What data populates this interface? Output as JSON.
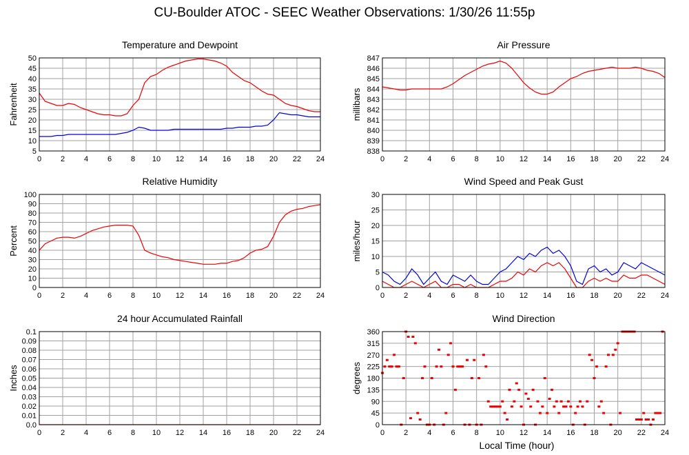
{
  "page": {
    "title": "CU-Boulder ATOC - SEEC Weather Observations: 1/30/26 11:55p",
    "x_axis_label": "Local Time (hour)"
  },
  "colors": {
    "red": "#ee0000",
    "blue": "#0000dd",
    "grid": "#a0a0a0",
    "frame": "#000000"
  },
  "chart_data": [
    {
      "id": "temp",
      "type": "line",
      "title": "Temperature and Dewpoint",
      "ylabel": "Fahrenheit",
      "xlim": [
        0,
        24
      ],
      "ylim": [
        5,
        50
      ],
      "yticks": [
        "5",
        "10",
        "15",
        "20",
        "25",
        "30",
        "35",
        "40",
        "45",
        "50"
      ],
      "xticks": [
        "0",
        "2",
        "4",
        "6",
        "8",
        "10",
        "12",
        "14",
        "16",
        "18",
        "20",
        "22",
        "24"
      ],
      "series": [
        {
          "color": "red",
          "x": [
            0,
            0.5,
            1,
            1.5,
            2,
            2.5,
            3,
            3.5,
            4,
            4.5,
            5,
            5.5,
            6,
            6.5,
            7,
            7.5,
            8,
            8.5,
            9,
            9.5,
            10,
            10.5,
            11,
            11.5,
            12,
            12.5,
            13,
            13.5,
            14,
            14.5,
            15,
            15.5,
            16,
            16.5,
            17,
            17.5,
            18,
            18.5,
            19,
            19.5,
            20,
            20.5,
            21,
            21.5,
            22,
            22.5,
            23,
            23.5,
            24
          ],
          "y": [
            33,
            29,
            28,
            27,
            27,
            28,
            27.5,
            26,
            25,
            24,
            23,
            22.5,
            22.5,
            22,
            22,
            23,
            27,
            30,
            38,
            41,
            42,
            44,
            45.5,
            46.5,
            47.5,
            48.5,
            49,
            49.5,
            49.5,
            49,
            48.5,
            47.5,
            46,
            43,
            41,
            39,
            38,
            36,
            34,
            32.5,
            32,
            30,
            28,
            27,
            26.5,
            25.5,
            24.5,
            24,
            24
          ]
        },
        {
          "color": "blue",
          "x": [
            0,
            0.5,
            1,
            1.5,
            2,
            2.5,
            3,
            3.5,
            4,
            4.5,
            5,
            5.5,
            6,
            6.5,
            7,
            7.5,
            8,
            8.5,
            9,
            9.5,
            10,
            10.5,
            11,
            11.5,
            12,
            12.5,
            13,
            13.5,
            14,
            14.5,
            15,
            15.5,
            16,
            16.5,
            17,
            17.5,
            18,
            18.5,
            19,
            19.5,
            20,
            20.5,
            21,
            21.5,
            22,
            22.5,
            23,
            23.5,
            24
          ],
          "y": [
            12,
            12,
            12,
            12.5,
            12.5,
            13,
            13,
            13,
            13,
            13,
            13,
            13,
            13,
            13,
            13.5,
            14,
            15,
            16.5,
            16,
            15,
            15,
            15,
            15,
            15.5,
            15.5,
            15.5,
            15.5,
            15.5,
            15.5,
            15.5,
            15.5,
            15.5,
            16,
            16,
            16.5,
            16.5,
            16.5,
            17,
            17,
            17.5,
            20,
            23.5,
            23,
            22.5,
            22.5,
            22,
            21.5,
            21.5,
            21.5
          ]
        }
      ]
    },
    {
      "id": "press",
      "type": "line",
      "title": "Air Pressure",
      "ylabel": "millibars",
      "xlim": [
        0,
        24
      ],
      "ylim": [
        838,
        847
      ],
      "yticks": [
        "838",
        "839",
        "840",
        "841",
        "842",
        "843",
        "844",
        "845",
        "846",
        "847"
      ],
      "xticks": [
        "0",
        "2",
        "4",
        "6",
        "8",
        "10",
        "12",
        "14",
        "16",
        "18",
        "20",
        "22",
        "24"
      ],
      "series": [
        {
          "color": "red",
          "x": [
            0,
            0.5,
            1,
            1.5,
            2,
            2.5,
            3,
            3.5,
            4,
            4.5,
            5,
            5.5,
            6,
            6.5,
            7,
            7.5,
            8,
            8.5,
            9,
            9.5,
            10,
            10.5,
            11,
            11.5,
            12,
            12.5,
            13,
            13.5,
            14,
            14.5,
            15,
            15.5,
            16,
            16.5,
            17,
            17.5,
            18,
            18.5,
            19,
            19.5,
            20,
            20.5,
            21,
            21.5,
            22,
            22.5,
            23,
            23.5,
            24
          ],
          "y": [
            844.2,
            844.1,
            844,
            843.9,
            843.9,
            844,
            844,
            844,
            844,
            844,
            844,
            844.2,
            844.5,
            844.9,
            845.3,
            845.6,
            845.9,
            846.2,
            846.4,
            846.5,
            846.7,
            846.5,
            846,
            845.3,
            844.6,
            844.1,
            843.7,
            843.5,
            843.5,
            843.7,
            844.2,
            844.6,
            845,
            845.2,
            845.5,
            845.7,
            845.8,
            845.9,
            846,
            846.1,
            846,
            846,
            846,
            846.1,
            846,
            845.8,
            845.7,
            845.5,
            845.1
          ]
        }
      ]
    },
    {
      "id": "rh",
      "type": "line",
      "title": "Relative Humidity",
      "ylabel": "Percent",
      "xlim": [
        0,
        24
      ],
      "ylim": [
        0,
        100
      ],
      "yticks": [
        "0",
        "10",
        "20",
        "30",
        "40",
        "50",
        "60",
        "70",
        "80",
        "90",
        "100"
      ],
      "xticks": [
        "0",
        "2",
        "4",
        "6",
        "8",
        "10",
        "12",
        "14",
        "16",
        "18",
        "20",
        "22",
        "24"
      ],
      "series": [
        {
          "color": "red",
          "x": [
            0,
            0.5,
            1,
            1.5,
            2,
            2.5,
            3,
            3.5,
            4,
            4.5,
            5,
            5.5,
            6,
            6.5,
            7,
            7.5,
            8,
            8.5,
            9,
            9.5,
            10,
            10.5,
            11,
            11.5,
            12,
            12.5,
            13,
            13.5,
            14,
            14.5,
            15,
            15.5,
            16,
            16.5,
            17,
            17.5,
            18,
            18.5,
            19,
            19.5,
            20,
            20.5,
            21,
            21.5,
            22,
            22.5,
            23,
            23.5,
            24
          ],
          "y": [
            40,
            47,
            50,
            53,
            54,
            54,
            53,
            55,
            58,
            61,
            63,
            65,
            66,
            67,
            67,
            67,
            66,
            56,
            40,
            37,
            35,
            33,
            32,
            30,
            29,
            28,
            27,
            26,
            25,
            25,
            25,
            26,
            26,
            28,
            29,
            32,
            37,
            40,
            41,
            44,
            55,
            70,
            78,
            82,
            84,
            85,
            87,
            88,
            89
          ]
        }
      ]
    },
    {
      "id": "wind",
      "type": "line",
      "title": "Wind Speed and Peak Gust",
      "ylabel": "miles/hour",
      "xlim": [
        0,
        24
      ],
      "ylim": [
        0,
        30
      ],
      "yticks": [
        "0",
        "5",
        "10",
        "15",
        "20",
        "25",
        "30"
      ],
      "xticks": [
        "0",
        "2",
        "4",
        "6",
        "8",
        "10",
        "12",
        "14",
        "16",
        "18",
        "20",
        "22",
        "24"
      ],
      "series": [
        {
          "color": "blue",
          "x": [
            0,
            0.5,
            1,
            1.5,
            2,
            2.5,
            3,
            3.5,
            4,
            4.5,
            5,
            5.5,
            6,
            6.5,
            7,
            7.5,
            8,
            8.5,
            9,
            9.5,
            10,
            10.5,
            11,
            11.5,
            12,
            12.5,
            13,
            13.5,
            14,
            14.5,
            15,
            15.5,
            16,
            16.5,
            17,
            17.5,
            18,
            18.5,
            19,
            19.5,
            20,
            20.5,
            21,
            21.5,
            22,
            22.5,
            23,
            23.5,
            24
          ],
          "y": [
            5,
            4,
            2,
            1,
            3,
            6,
            4,
            1,
            3,
            5,
            2,
            1,
            4,
            3,
            2,
            4,
            2,
            1,
            1,
            3,
            5,
            6,
            8,
            10,
            9,
            11,
            10,
            12,
            13,
            11,
            12,
            10,
            7,
            2,
            1,
            6,
            7,
            5,
            6,
            4,
            5,
            8,
            7,
            6,
            8,
            7,
            6,
            5,
            4
          ]
        },
        {
          "color": "red",
          "x": [
            0,
            0.5,
            1,
            1.5,
            2,
            2.5,
            3,
            3.5,
            4,
            4.5,
            5,
            5.5,
            6,
            6.5,
            7,
            7.5,
            8,
            8.5,
            9,
            9.5,
            10,
            10.5,
            11,
            11.5,
            12,
            12.5,
            13,
            13.5,
            14,
            14.5,
            15,
            15.5,
            16,
            16.5,
            17,
            17.5,
            18,
            18.5,
            19,
            19.5,
            20,
            20.5,
            21,
            21.5,
            22,
            22.5,
            23,
            23.5,
            24
          ],
          "y": [
            2,
            1,
            0,
            0,
            1,
            2,
            1,
            0,
            1,
            2,
            0,
            0,
            1,
            1,
            0,
            1,
            0,
            0,
            0,
            1,
            2,
            2,
            3,
            5,
            4,
            6,
            5,
            7,
            8,
            7,
            8,
            6,
            3,
            0,
            0,
            2,
            3,
            2,
            3,
            2,
            2,
            4,
            3,
            3,
            4,
            4,
            3,
            2,
            1
          ]
        }
      ]
    },
    {
      "id": "rain",
      "type": "line",
      "title": "24 hour Accumulated Rainfall",
      "ylabel": "Inches",
      "xlim": [
        0,
        24
      ],
      "ylim": [
        0,
        0.1
      ],
      "yticks": [
        "0.0",
        "0.01",
        "0.02",
        "0.03",
        "0.04",
        "0.05",
        "0.06",
        "0.07",
        "0.08",
        "0.09",
        "0.1"
      ],
      "xticks": [
        "0",
        "2",
        "4",
        "6",
        "8",
        "10",
        "12",
        "14",
        "16",
        "18",
        "20",
        "22",
        "24"
      ],
      "series": [
        {
          "color": "red",
          "x": [
            0,
            24
          ],
          "y": [
            0,
            0
          ]
        }
      ]
    },
    {
      "id": "dir",
      "type": "scatter",
      "title": "Wind Direction",
      "ylabel": "degrees",
      "xlim": [
        0,
        24
      ],
      "ylim": [
        0,
        360
      ],
      "yticks": [
        "0",
        "45",
        "90",
        "135",
        "180",
        "225",
        "270",
        "315",
        "360"
      ],
      "xticks": [
        "0",
        "2",
        "4",
        "6",
        "8",
        "10",
        "12",
        "14",
        "16",
        "18",
        "20",
        "22",
        "24"
      ],
      "series": [
        {
          "color": "red",
          "x": [
            0,
            0.2,
            0.4,
            0.6,
            0.8,
            1.0,
            1.2,
            1.4,
            1.6,
            1.8,
            2.0,
            2.2,
            2.4,
            2.6,
            2.8,
            3.0,
            3.2,
            3.4,
            3.6,
            3.8,
            4.0,
            4.2,
            4.4,
            4.6,
            4.8,
            5.0,
            5.2,
            5.4,
            5.6,
            5.8,
            6.0,
            6.2,
            6.4,
            6.6,
            6.8,
            7.0,
            7.2,
            7.4,
            7.6,
            7.8,
            8.0,
            8.2,
            8.4,
            8.6,
            8.8,
            9.0,
            9.2,
            9.4,
            9.6,
            9.8,
            10.0,
            10.2,
            10.4,
            10.6,
            10.8,
            11.0,
            11.2,
            11.4,
            11.6,
            11.8,
            12.0,
            12.2,
            12.4,
            12.6,
            12.8,
            13.0,
            13.2,
            13.4,
            13.6,
            13.8,
            14.0,
            14.2,
            14.4,
            14.6,
            14.8,
            15.0,
            15.2,
            15.4,
            15.6,
            15.8,
            16.0,
            16.2,
            16.4,
            16.6,
            16.8,
            17.0,
            17.2,
            17.4,
            17.6,
            17.8,
            18.0,
            18.2,
            18.4,
            18.6,
            18.8,
            19.0,
            19.2,
            19.4,
            19.6,
            19.8,
            20.0,
            20.2,
            20.4,
            20.6,
            20.8,
            21.0,
            21.2,
            21.4,
            21.6,
            21.8,
            22.0,
            22.2,
            22.4,
            22.6,
            22.8,
            23.0,
            23.2,
            23.4,
            23.6,
            23.8
          ],
          "y": [
            200,
            225,
            250,
            225,
            225,
            270,
            225,
            225,
            0,
            180,
            360,
            340,
            25,
            340,
            315,
            45,
            20,
            180,
            225,
            0,
            0,
            180,
            0,
            225,
            290,
            225,
            0,
            45,
            270,
            315,
            225,
            135,
            225,
            225,
            225,
            0,
            250,
            0,
            180,
            250,
            0,
            180,
            0,
            270,
            225,
            90,
            70,
            70,
            70,
            70,
            70,
            90,
            45,
            20,
            135,
            70,
            90,
            160,
            135,
            70,
            0,
            120,
            100,
            70,
            135,
            0,
            90,
            45,
            70,
            180,
            45,
            100,
            135,
            70,
            90,
            45,
            90,
            70,
            70,
            90,
            70,
            0,
            45,
            70,
            90,
            70,
            0,
            90,
            270,
            250,
            180,
            225,
            70,
            90,
            45,
            225,
            270,
            0,
            270,
            290,
            315,
            45,
            360,
            360,
            360,
            360,
            360,
            360,
            20,
            20,
            20,
            45,
            20,
            20,
            0,
            20,
            45,
            45,
            45,
            360
          ]
        }
      ]
    }
  ]
}
